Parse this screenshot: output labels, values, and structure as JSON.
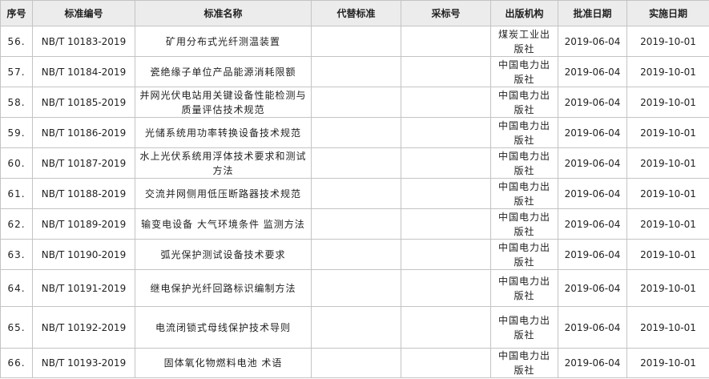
{
  "table": {
    "header": [
      "序号",
      "标准编号",
      "标准名称",
      "代替标准",
      "采标号",
      "出版机构",
      "批准日期",
      "实施日期"
    ],
    "rows": [
      [
        "56.",
        "NB/T 10183-2019",
        "矿用分布式光纤测温装置",
        null,
        null,
        "煤炭工业出版社",
        "2019-06-04",
        "2019-10-01"
      ],
      [
        "57.",
        "NB/T 10184-2019",
        "瓷绝缘子单位产品能源消耗限额",
        null,
        null,
        "中国电力出版社",
        "2019-06-04",
        "2019-10-01"
      ],
      [
        "58.",
        "NB/T 10185-2019",
        "并网光伏电站用关键设备性能检测与质量评估技术规范",
        null,
        null,
        "中国电力出版社",
        "2019-06-04",
        "2019-10-01"
      ],
      [
        "59.",
        "NB/T 10186-2019",
        "光储系统用功率转换设备技术规范",
        null,
        null,
        "中国电力出版社",
        "2019-06-04",
        "2019-10-01"
      ],
      [
        "60.",
        "NB/T 10187-2019",
        "水上光伏系统用浮体技术要求和测试方法",
        null,
        null,
        "中国电力出版社",
        "2019-06-04",
        "2019-10-01"
      ],
      [
        "61.",
        "NB/T 10188-2019",
        "交流并网侧用低压断路器技术规范",
        null,
        null,
        "中国电力出版社",
        "2019-06-04",
        "2019-10-01"
      ],
      [
        "62.",
        "NB/T 10189-2019",
        "输变电设备 大气环境条件 监测方法",
        null,
        null,
        "中国电力出版社",
        "2019-06-04",
        "2019-10-01"
      ],
      [
        "63.",
        "NB/T 10190-2019",
        "弧光保护测试设备技术要求",
        null,
        null,
        "中国电力出版社",
        "2019-06-04",
        "2019-10-01"
      ],
      [
        "64.",
        "NB/T 10191-2019",
        "继电保护光纤回路标识编制方法",
        null,
        null,
        "中国电力出版社",
        "2019-06-04",
        "2019-10-01"
      ],
      [
        "65.",
        "NB/T 10192-2019",
        "电流闭锁式母线保护技术导则",
        null,
        null,
        "中国电力出版社",
        "2019-06-04",
        "2019-10-01"
      ],
      [
        "66.",
        "NB/T 10193-2019",
        "固体氧化物燃料电池 术语",
        null,
        null,
        "中国电力出版社",
        "2019-06-04",
        "2019-10-01"
      ]
    ]
  }
}
